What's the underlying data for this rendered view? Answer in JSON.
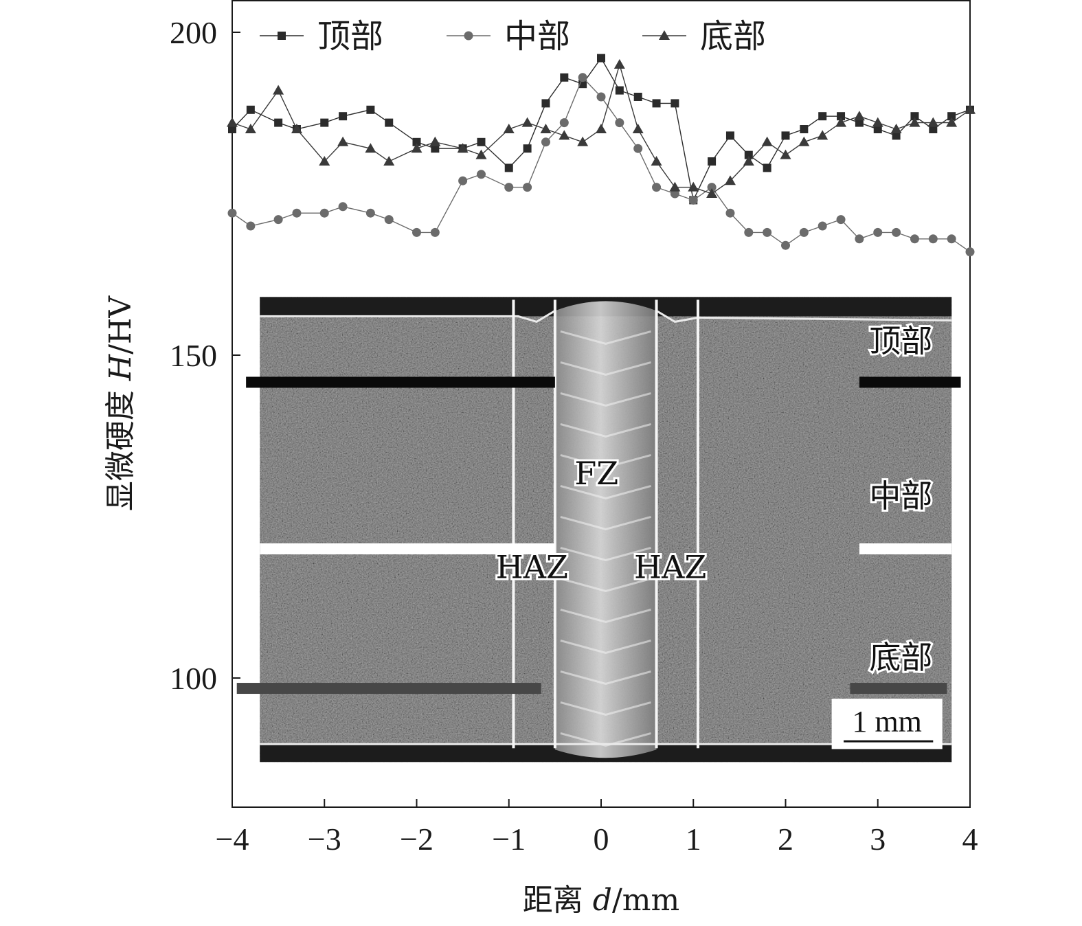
{
  "chart_data": {
    "type": "line",
    "title": "",
    "xlabel_prefix": "距离 ",
    "xlabel_var": "d",
    "xlabel_unit": "/mm",
    "ylabel_prefix": "显微硬度 ",
    "ylabel_var": "H",
    "ylabel_unit": "/HV",
    "xlim": [
      -4,
      4
    ],
    "ylim": [
      80,
      205
    ],
    "xticks": [
      -4,
      -3,
      -2,
      -1,
      0,
      1,
      2,
      3,
      4
    ],
    "xtick_labels": [
      "−4",
      "−3",
      "−2",
      "−1",
      "0",
      "1",
      "2",
      "3",
      "4"
    ],
    "yticks": [
      100,
      150,
      200
    ],
    "ytick_labels": [
      "100",
      "150",
      "200"
    ],
    "grid": false,
    "legend_position": "top",
    "series": [
      {
        "name": "顶部",
        "marker": "square",
        "color": "#2b2b2b",
        "x": [
          -4.0,
          -3.8,
          -3.5,
          -3.3,
          -3.0,
          -2.8,
          -2.5,
          -2.3,
          -2.0,
          -1.8,
          -1.5,
          -1.3,
          -1.0,
          -0.8,
          -0.6,
          -0.4,
          -0.2,
          0.0,
          0.2,
          0.4,
          0.6,
          0.8,
          1.0,
          1.2,
          1.4,
          1.6,
          1.8,
          2.0,
          2.2,
          2.4,
          2.6,
          2.8,
          3.0,
          3.2,
          3.4,
          3.6,
          3.8,
          4.0
        ],
        "y": [
          185,
          188,
          186,
          185,
          186,
          187,
          188,
          186,
          183,
          182,
          182,
          183,
          179,
          182,
          189,
          193,
          192,
          196,
          191,
          190,
          189,
          189,
          174,
          180,
          184,
          181,
          179,
          184,
          185,
          187,
          187,
          186,
          185,
          184,
          187,
          185,
          187,
          188
        ]
      },
      {
        "name": "中部",
        "marker": "circle",
        "color": "#6b6b6b",
        "x": [
          -4.0,
          -3.8,
          -3.5,
          -3.3,
          -3.0,
          -2.8,
          -2.5,
          -2.3,
          -2.0,
          -1.8,
          -1.5,
          -1.3,
          -1.0,
          -0.8,
          -0.6,
          -0.4,
          -0.2,
          0.0,
          0.2,
          0.4,
          0.6,
          0.8,
          1.0,
          1.2,
          1.4,
          1.6,
          1.8,
          2.0,
          2.2,
          2.4,
          2.6,
          2.8,
          3.0,
          3.2,
          3.4,
          3.6,
          3.8,
          4.0
        ],
        "y": [
          172,
          170,
          171,
          172,
          172,
          173,
          172,
          171,
          169,
          169,
          177,
          178,
          176,
          176,
          183,
          186,
          193,
          190,
          186,
          182,
          176,
          175,
          174,
          176,
          172,
          169,
          169,
          167,
          169,
          170,
          171,
          168,
          169,
          169,
          168,
          168,
          168,
          166
        ]
      },
      {
        "name": "底部",
        "marker": "triangle",
        "color": "#3a3a3a",
        "x": [
          -4.0,
          -3.8,
          -3.5,
          -3.3,
          -3.0,
          -2.8,
          -2.5,
          -2.3,
          -2.0,
          -1.8,
          -1.5,
          -1.3,
          -1.0,
          -0.8,
          -0.6,
          -0.4,
          -0.2,
          0.0,
          0.2,
          0.4,
          0.6,
          0.8,
          1.0,
          1.2,
          1.4,
          1.6,
          1.8,
          2.0,
          2.2,
          2.4,
          2.6,
          2.8,
          3.0,
          3.2,
          3.4,
          3.6,
          3.8,
          4.0
        ],
        "y": [
          186,
          185,
          191,
          185,
          180,
          183,
          182,
          180,
          182,
          183,
          182,
          181,
          185,
          186,
          185,
          184,
          183,
          185,
          195,
          185,
          180,
          176,
          176,
          175,
          177,
          180,
          183,
          181,
          183,
          184,
          186,
          187,
          186,
          185,
          186,
          186,
          186,
          188
        ]
      }
    ],
    "micrograph": {
      "x_range": [
        -3.7,
        3.8
      ],
      "y_range": [
        87,
        159
      ],
      "zone_lines_x": [
        -0.95,
        -0.5,
        0.6,
        1.05
      ],
      "labels": {
        "fz": "FZ",
        "haz_left": "HAZ",
        "haz_right": "HAZ",
        "top": "顶部",
        "middle": "中部",
        "bottom": "底部"
      },
      "scale_bar": "1 mm"
    }
  }
}
